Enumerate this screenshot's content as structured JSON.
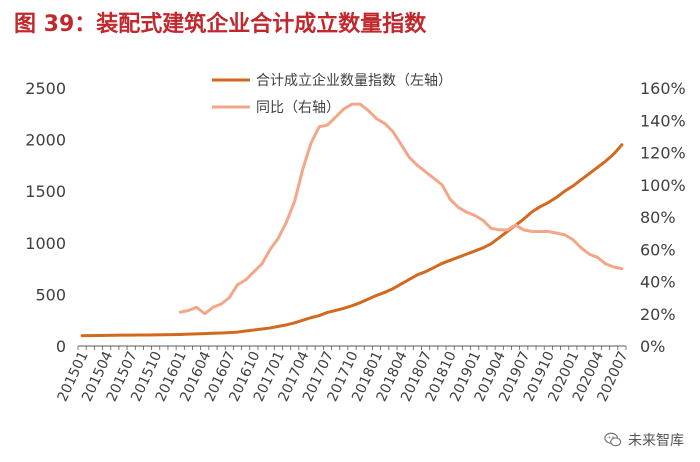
{
  "title": "图 39：装配式建筑企业合计成立数量指数",
  "watermark": "未来智库",
  "colors": {
    "title": "#c0282d",
    "series1": "#d2691e",
    "series2": "#f2a789",
    "axis": "#595959"
  },
  "chart_data": {
    "type": "line",
    "x": [
      "201501",
      "201502",
      "201503",
      "201504",
      "201505",
      "201506",
      "201507",
      "201508",
      "201509",
      "201510",
      "201511",
      "201512",
      "201601",
      "201602",
      "201603",
      "201604",
      "201605",
      "201606",
      "201607",
      "201608",
      "201609",
      "201610",
      "201611",
      "201612",
      "201701",
      "201702",
      "201703",
      "201704",
      "201705",
      "201706",
      "201707",
      "201708",
      "201709",
      "201710",
      "201711",
      "201712",
      "201801",
      "201802",
      "201803",
      "201804",
      "201805",
      "201806",
      "201807",
      "201808",
      "201809",
      "201810",
      "201811",
      "201812",
      "201901",
      "201902",
      "201903",
      "201904",
      "201905",
      "201906",
      "201907",
      "201908",
      "201909",
      "201910",
      "201911",
      "201912",
      "202001",
      "202002",
      "202003",
      "202004",
      "202005",
      "202006",
      "202007"
    ],
    "xticks": [
      "201501",
      "201504",
      "201507",
      "201510",
      "201601",
      "201604",
      "201607",
      "201610",
      "201701",
      "201704",
      "201707",
      "201710",
      "201801",
      "201804",
      "201807",
      "201810",
      "201901",
      "201904",
      "201907",
      "201910",
      "202001",
      "202004",
      "202007"
    ],
    "yticks_left": [
      "0",
      "500",
      "1000",
      "1500",
      "2000",
      "2500"
    ],
    "yticks_right": [
      "0%",
      "20%",
      "40%",
      "60%",
      "80%",
      "100%",
      "120%",
      "140%",
      "160%"
    ],
    "ylim_left": [
      0,
      2500
    ],
    "ylim_right": [
      0,
      160
    ],
    "legend_position": "top-center",
    "series": [
      {
        "name": "合计成立企业数量指数（左轴）",
        "axis": "left",
        "values": [
          100,
          100,
          102,
          103,
          104,
          105,
          105,
          106,
          107,
          108,
          109,
          110,
          112,
          115,
          118,
          120,
          123,
          126,
          130,
          135,
          145,
          155,
          165,
          175,
          190,
          205,
          225,
          250,
          275,
          295,
          325,
          345,
          365,
          390,
          420,
          455,
          490,
          520,
          555,
          600,
          645,
          690,
          720,
          760,
          800,
          830,
          860,
          890,
          920,
          950,
          990,
          1050,
          1110,
          1170,
          1230,
          1300,
          1350,
          1390,
          1440,
          1500,
          1550,
          1610,
          1670,
          1730,
          1790,
          1860,
          1950
        ]
      },
      {
        "name": "同比（右轴）",
        "axis": "right",
        "values": [
          null,
          null,
          null,
          null,
          null,
          null,
          null,
          null,
          null,
          null,
          null,
          null,
          21,
          22,
          24,
          20,
          24,
          26,
          30,
          38,
          41,
          46,
          51,
          60,
          67,
          77,
          90,
          110,
          126,
          136,
          137,
          142,
          147,
          150,
          150,
          146,
          141,
          138,
          133,
          125,
          117,
          112,
          108,
          104,
          100,
          91,
          86,
          83,
          81,
          78,
          73,
          72,
          72,
          75,
          72,
          71,
          71,
          71,
          70,
          69,
          66,
          61,
          57,
          55,
          51,
          49,
          48
        ]
      }
    ]
  }
}
